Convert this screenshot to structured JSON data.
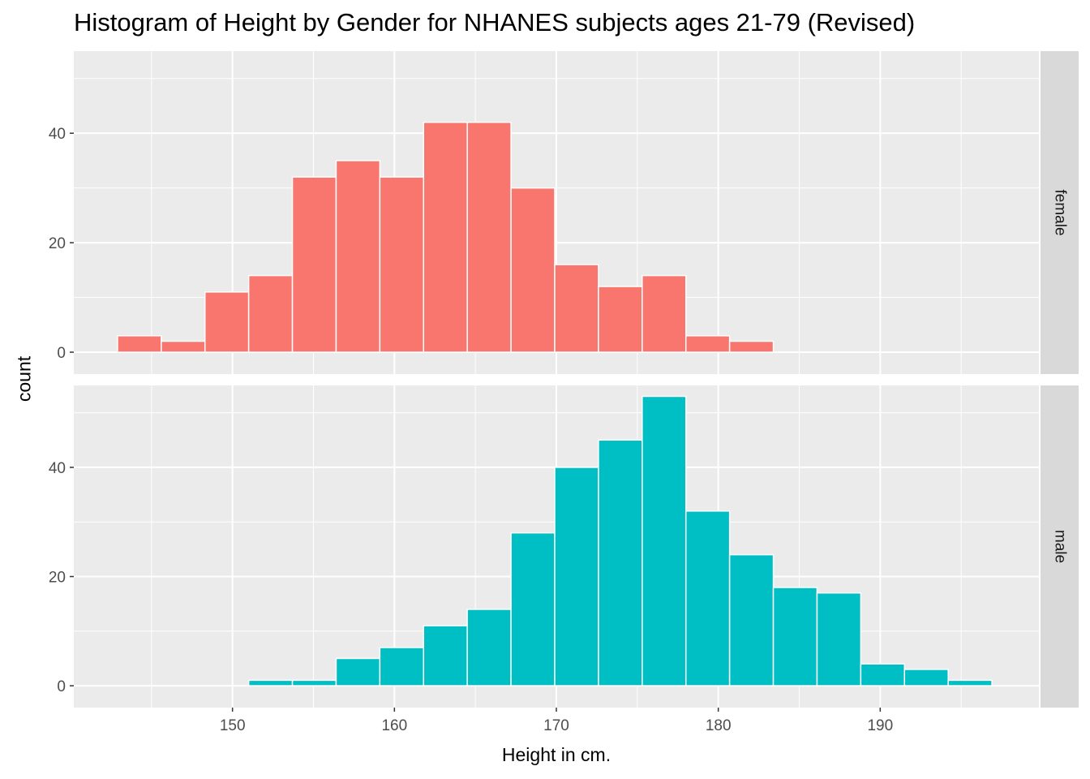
{
  "chart_data": {
    "type": "bar",
    "title": "Histogram of Height by Gender for NHANES subjects ages 21-79 (Revised)",
    "xlabel": "Height in cm.",
    "ylabel": "count",
    "xlim": [
      140.2,
      199.8
    ],
    "ylim": [
      -4,
      55
    ],
    "x_ticks": [
      150,
      160,
      170,
      180,
      190
    ],
    "y_ticks": [
      0,
      20,
      40
    ],
    "bin_width": 2.7,
    "bin_start": 142.9,
    "grid": true,
    "panel_background": "#ebebeb",
    "strip_background": "#d9d9d9",
    "facets": [
      {
        "label": "female",
        "color": "#f8766d",
        "counts": [
          3,
          2,
          11,
          14,
          32,
          35,
          32,
          42,
          42,
          30,
          16,
          12,
          14,
          3,
          2
        ]
      },
      {
        "label": "male",
        "color": "#00bfc4",
        "counts": [
          0,
          0,
          0,
          1,
          1,
          5,
          7,
          11,
          14,
          28,
          40,
          45,
          53,
          32,
          24,
          18,
          17,
          4,
          3,
          1
        ]
      }
    ]
  }
}
